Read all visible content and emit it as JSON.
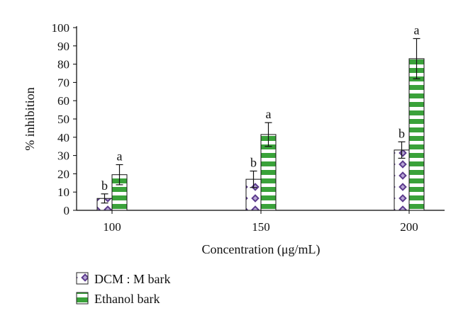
{
  "chart_data": {
    "type": "bar",
    "title": "",
    "xlabel": "Concentration (μg/mL)",
    "ylabel": "% inhibition",
    "ylim": [
      0,
      100
    ],
    "yticks": [
      0,
      10,
      20,
      30,
      40,
      50,
      60,
      70,
      80,
      90,
      100
    ],
    "grid": false,
    "legend_position": "bottom-left",
    "categories": [
      "100",
      "150",
      "200"
    ],
    "series": [
      {
        "name": "DCM : M bark",
        "values": [
          6.5,
          17,
          33
        ],
        "errors": [
          2.5,
          4.5,
          4.5
        ],
        "significance": [
          "b",
          "b",
          "b"
        ],
        "color": "#5b3a8c",
        "pattern": "diamond"
      },
      {
        "name": "Ethanol bark",
        "values": [
          19.5,
          41.5,
          83
        ],
        "errors": [
          5.5,
          6.5,
          11
        ],
        "significance": [
          "a",
          "a",
          "a"
        ],
        "color": "#3aa23a",
        "pattern": "horizontal-stripes"
      }
    ]
  }
}
